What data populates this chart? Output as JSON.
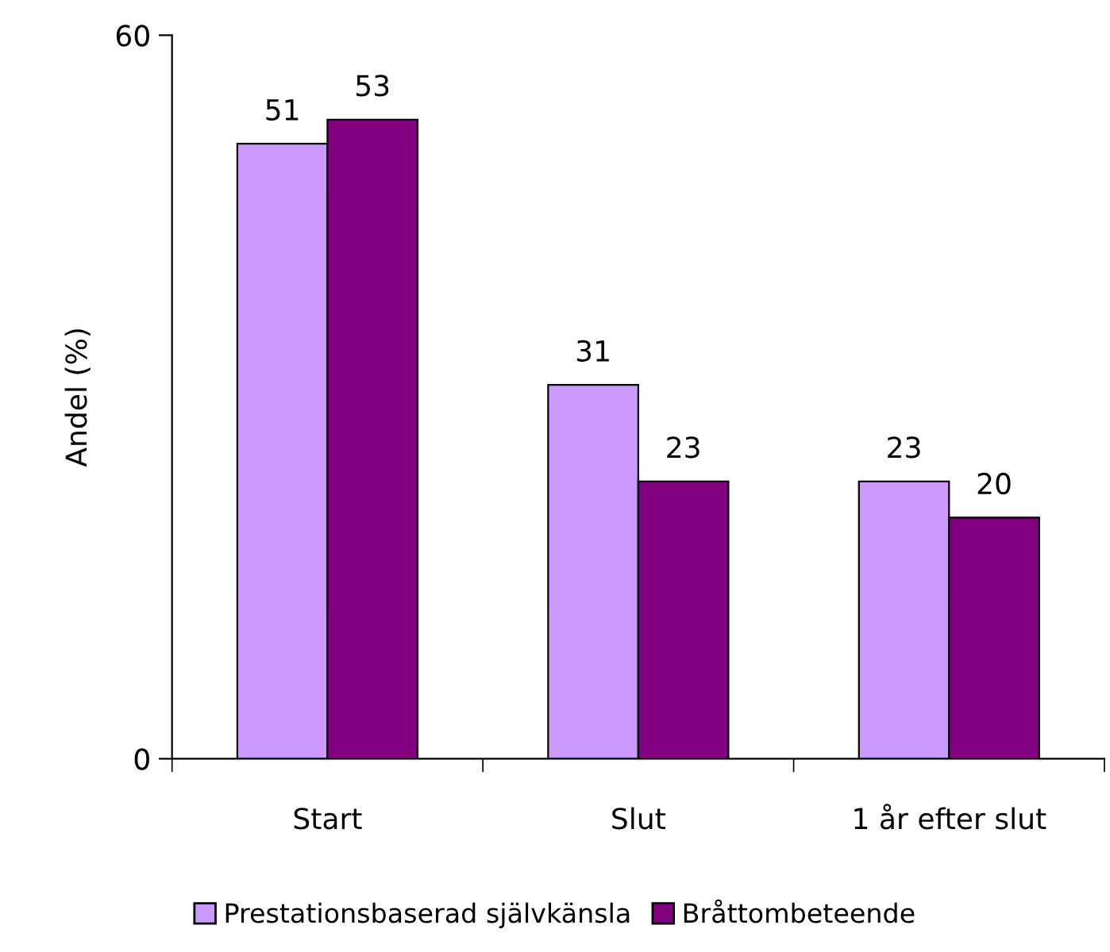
{
  "chart_data": {
    "type": "bar",
    "ylabel": "Andel (%)",
    "categories": [
      "Start",
      "Slut",
      "1 år efter slut"
    ],
    "series": [
      {
        "name": "Prestationsbaserad självkänsla",
        "color": "#cc99ff",
        "values": [
          51,
          31,
          23
        ]
      },
      {
        "name": "Bråttombeteende",
        "color": "#800080",
        "values": [
          53,
          23,
          20
        ]
      }
    ],
    "ylim": [
      0,
      60
    ],
    "yticks": [
      0,
      60
    ],
    "data_labels": true,
    "grid": false,
    "legend": "bottom"
  }
}
